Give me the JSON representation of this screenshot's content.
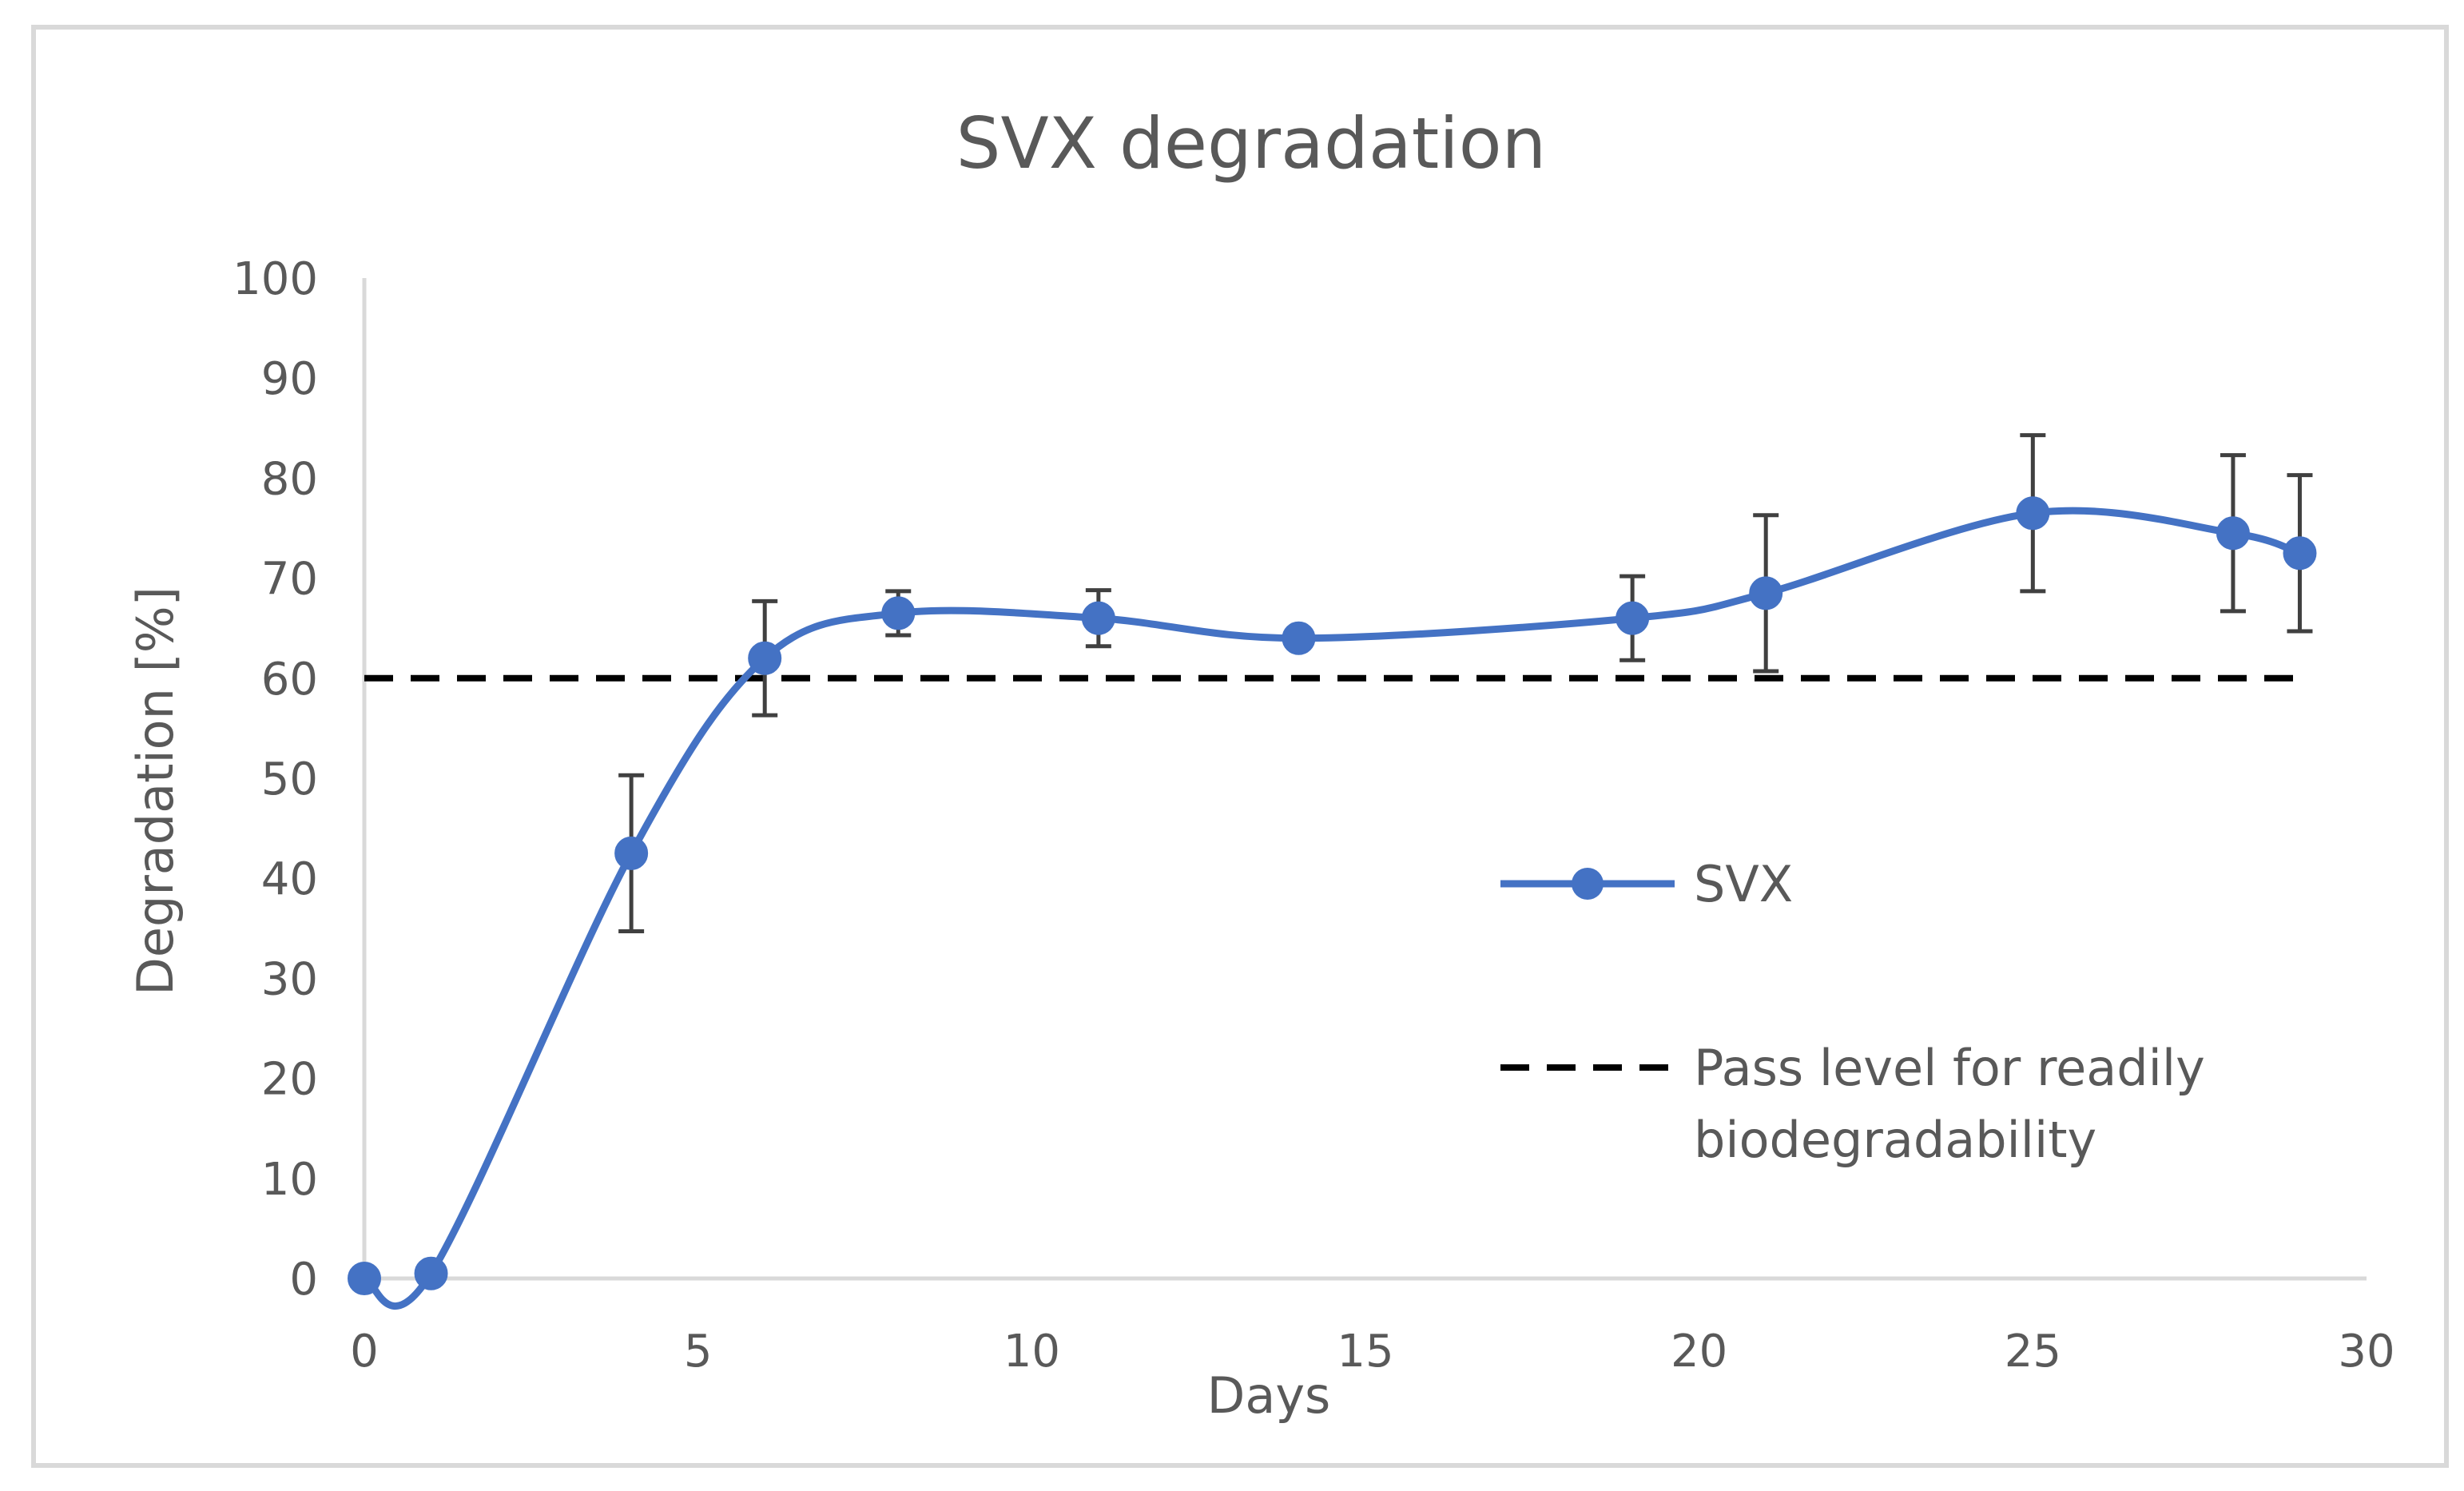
{
  "chart_data": {
    "type": "line",
    "title": "SVX degradation",
    "xlabel": "Days",
    "ylabel": "Degradation [%]",
    "xlim": [
      0,
      30
    ],
    "ylim": [
      0,
      100
    ],
    "x_ticks": [
      0,
      5,
      10,
      15,
      20,
      25,
      30
    ],
    "y_ticks": [
      0,
      10,
      20,
      30,
      40,
      50,
      60,
      70,
      80,
      90,
      100
    ],
    "grid": false,
    "legend_position": "right",
    "series": [
      {
        "name": "SVX",
        "color": "#4472C4",
        "marker": "circle",
        "smooth": true,
        "points": [
          {
            "x": 0,
            "y": 0,
            "err": 0
          },
          {
            "x": 1,
            "y": 0.5,
            "err": 0
          },
          {
            "x": 4,
            "y": 42.5,
            "err": 7.8
          },
          {
            "x": 6,
            "y": 62,
            "err": 5.7
          },
          {
            "x": 8,
            "y": 66.5,
            "err": 2.2
          },
          {
            "x": 11,
            "y": 66,
            "err": 2.8
          },
          {
            "x": 14,
            "y": 64,
            "err": 0
          },
          {
            "x": 19,
            "y": 66,
            "err": 4.2
          },
          {
            "x": 21,
            "y": 68.5,
            "err": 7.8
          },
          {
            "x": 25,
            "y": 76.5,
            "err": 7.8
          },
          {
            "x": 28,
            "y": 74.5,
            "err": 7.8
          },
          {
            "x": 29,
            "y": 72.5,
            "err": 7.8
          }
        ]
      },
      {
        "name": "Pass level for readily biodegradability",
        "name_lines": [
          "Pass level for readily",
          "biodegradability"
        ],
        "color": "#000000",
        "style": "dashed",
        "points": [
          {
            "x": 0,
            "y": 60
          },
          {
            "x": 29,
            "y": 60
          }
        ]
      }
    ],
    "error_bar_color": "#404040"
  }
}
